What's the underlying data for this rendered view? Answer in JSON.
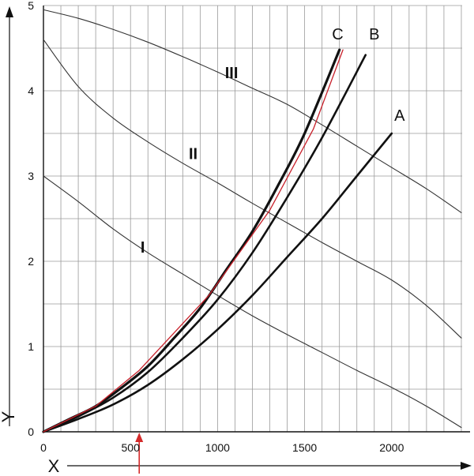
{
  "chart_data": {
    "type": "line",
    "xlabel": "X",
    "ylabel": "Y",
    "xlim": [
      0,
      2450
    ],
    "ylim": [
      0,
      5
    ],
    "x_ticks": [
      0,
      500,
      1000,
      1500,
      2000
    ],
    "y_ticks": [
      0,
      1,
      2,
      3,
      4,
      5
    ],
    "grid": true,
    "marker_x": 550,
    "series": [
      {
        "name": "I",
        "color": "#333333",
        "width": 1.1,
        "x": [
          0,
          200,
          400,
          600,
          800,
          1000,
          1200,
          1400,
          1600,
          1800,
          2000,
          2200,
          2400
        ],
        "y": [
          3.0,
          2.7,
          2.38,
          2.1,
          1.85,
          1.6,
          1.36,
          1.14,
          0.93,
          0.72,
          0.52,
          0.3,
          0.05
        ]
      },
      {
        "name": "II",
        "color": "#333333",
        "width": 1.1,
        "x": [
          0,
          200,
          400,
          600,
          800,
          1000,
          1200,
          1400,
          1600,
          1800,
          2000,
          2200,
          2400
        ],
        "y": [
          4.6,
          4.05,
          3.68,
          3.4,
          3.15,
          2.92,
          2.68,
          2.45,
          2.22,
          2.0,
          1.78,
          1.48,
          1.1
        ]
      },
      {
        "name": "III",
        "color": "#333333",
        "width": 1.1,
        "x": [
          0,
          200,
          400,
          600,
          800,
          1000,
          1200,
          1400,
          1600,
          1800,
          2000,
          2200,
          2400
        ],
        "y": [
          4.95,
          4.85,
          4.72,
          4.57,
          4.4,
          4.22,
          4.03,
          3.84,
          3.6,
          3.35,
          3.1,
          2.85,
          2.57
        ]
      },
      {
        "name": "A",
        "color": "#111111",
        "width": 2.6,
        "x": [
          0,
          200,
          400,
          600,
          800,
          1000,
          1200,
          1400,
          1600,
          1800,
          2000
        ],
        "y": [
          0,
          0.15,
          0.32,
          0.55,
          0.85,
          1.2,
          1.6,
          2.05,
          2.5,
          3.0,
          3.5
        ]
      },
      {
        "name": "B",
        "color": "#111111",
        "width": 2.6,
        "x": [
          0,
          200,
          400,
          600,
          800,
          1000,
          1200,
          1400,
          1600,
          1850
        ],
        "y": [
          0,
          0.18,
          0.4,
          0.7,
          1.1,
          1.55,
          2.1,
          2.75,
          3.45,
          4.42
        ]
      },
      {
        "name": "C",
        "color": "#111111",
        "width": 3.2,
        "x": [
          0,
          150,
          300,
          450,
          600,
          750,
          900,
          1050,
          1200,
          1350,
          1500,
          1700
        ],
        "y": [
          0,
          0.15,
          0.3,
          0.52,
          0.77,
          1.1,
          1.45,
          1.9,
          2.35,
          2.9,
          3.5,
          4.48
        ]
      },
      {
        "name": "C-red",
        "color": "#c8202a",
        "width": 1.3,
        "x": [
          0,
          300,
          550,
          950,
          1300,
          1550,
          1720
        ],
        "y": [
          0,
          0.3,
          0.72,
          1.6,
          2.6,
          3.55,
          4.48
        ]
      }
    ],
    "labels": [
      {
        "text": "I",
        "x": 570,
        "y": 2.1,
        "style": "roman"
      },
      {
        "text": "II",
        "x": 860,
        "y": 3.2,
        "style": "roman"
      },
      {
        "text": "III",
        "x": 1080,
        "y": 4.15,
        "style": "roman"
      },
      {
        "text": "A",
        "x": 2045,
        "y": 3.65,
        "style": "letter"
      },
      {
        "text": "B",
        "x": 1900,
        "y": 4.6,
        "style": "letter"
      },
      {
        "text": "C",
        "x": 1690,
        "y": 4.6,
        "style": "letter"
      }
    ]
  }
}
